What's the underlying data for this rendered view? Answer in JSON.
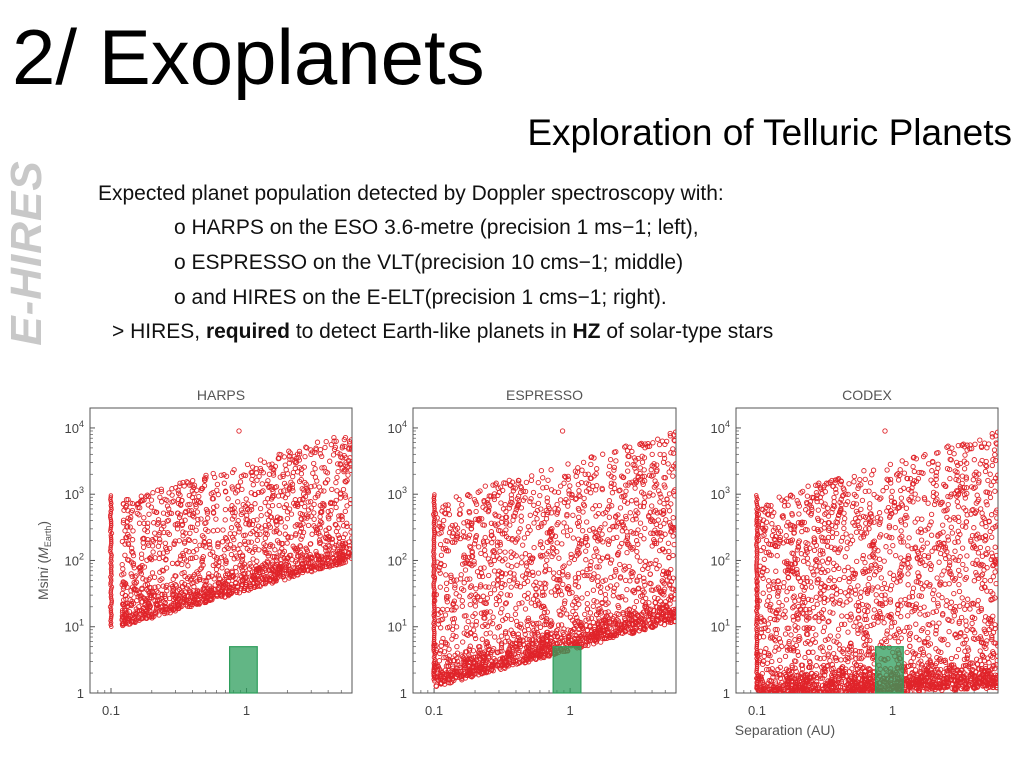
{
  "slide": {
    "title": "2/ Exoplanets",
    "subtitle": "Exploration of Telluric Planets",
    "side_label": "E-HIRES",
    "intro": "Expected planet population detected by Doppler spectroscopy with:",
    "bullets": [
      "o HARPS on the ESO 3.6-metre (precision 1 ms−1; left),",
      "o ESPRESSO on the VLT(precision 10 cms−1; middle)",
      "o and HIRES on the E-ELT(precision 1 cms−1; right)."
    ],
    "conclusion": {
      "prefix": "> HIRES, ",
      "strong1": "required",
      "middle": " to detect Earth-like planets in ",
      "strong2": "HZ",
      "suffix": " of solar-type stars"
    }
  },
  "colors": {
    "points": "#e0242a",
    "habitable_zone_fill": "#2e9e5c",
    "axis": "#555555"
  },
  "chart_data": [
    {
      "type": "scatter",
      "title": "HARPS",
      "xlabel": "",
      "ylabel": "Msini (MEarth)",
      "ylabel_main": "Msin",
      "ylabel_italic": "i",
      "ylabel_paren": " (",
      "ylabel_unit": "M",
      "ylabel_sub": "Earth",
      "ylabel_close": ")",
      "xscale": "log",
      "yscale": "log",
      "xlim": [
        0.07,
        6
      ],
      "ylim": [
        1,
        20000
      ],
      "xticks": [
        {
          "value": 0.1,
          "label": "0.1"
        },
        {
          "value": 1,
          "label": "1"
        }
      ],
      "yticks": [
        {
          "value": 1,
          "label": "1"
        },
        {
          "value": 10,
          "base": "10",
          "exp": "1"
        },
        {
          "value": 100,
          "base": "10",
          "exp": "2"
        },
        {
          "value": 1000,
          "base": "10",
          "exp": "3"
        },
        {
          "value": 10000,
          "base": "10",
          "exp": "4"
        }
      ],
      "detection_floor": {
        "x": [
          0.12,
          6
        ],
        "y": [
          10,
          100
        ]
      },
      "strip": {
        "x": 0.1,
        "y": [
          10,
          1000
        ]
      },
      "outlier": {
        "x": 0.88,
        "y": 9000
      },
      "habitable_zone": {
        "x": [
          0.75,
          1.2
        ],
        "y": [
          1,
          5
        ]
      },
      "n_points": 1700
    },
    {
      "type": "scatter",
      "title": "ESPRESSO",
      "xlabel": "",
      "ylabel": "",
      "xscale": "log",
      "yscale": "log",
      "xlim": [
        0.07,
        6
      ],
      "ylim": [
        1,
        20000
      ],
      "xticks": [
        {
          "value": 0.1,
          "label": "0.1"
        },
        {
          "value": 1,
          "label": "1"
        }
      ],
      "yticks": [
        {
          "value": 1,
          "label": "1"
        },
        {
          "value": 10,
          "base": "10",
          "exp": "1"
        },
        {
          "value": 100,
          "base": "10",
          "exp": "2"
        },
        {
          "value": 1000,
          "base": "10",
          "exp": "3"
        },
        {
          "value": 10000,
          "base": "10",
          "exp": "4"
        }
      ],
      "detection_floor": {
        "x": [
          0.1,
          6
        ],
        "y": [
          1.2,
          12
        ]
      },
      "strip": {
        "x": 0.1,
        "y": [
          1.5,
          1000
        ]
      },
      "outlier": {
        "x": 0.88,
        "y": 9000
      },
      "habitable_zone": {
        "x": [
          0.75,
          1.2
        ],
        "y": [
          1,
          5
        ]
      },
      "n_points": 2200
    },
    {
      "type": "scatter",
      "title": "CODEX",
      "xlabel": "Separation (AU)",
      "ylabel": "",
      "xscale": "log",
      "yscale": "log",
      "xlim": [
        0.07,
        6
      ],
      "ylim": [
        1,
        20000
      ],
      "xticks": [
        {
          "value": 0.1,
          "label": "0.1"
        },
        {
          "value": 1,
          "label": "1"
        }
      ],
      "yticks": [
        {
          "value": 1,
          "label": "1"
        },
        {
          "value": 10,
          "base": "10",
          "exp": "1"
        },
        {
          "value": 100,
          "base": "10",
          "exp": "2"
        },
        {
          "value": 1000,
          "base": "10",
          "exp": "3"
        },
        {
          "value": 10000,
          "base": "10",
          "exp": "4"
        }
      ],
      "detection_floor": {
        "x": [
          0.1,
          6
        ],
        "y": [
          0.8,
          1.2
        ]
      },
      "strip": {
        "x": 0.1,
        "y": [
          1.1,
          1000
        ]
      },
      "outlier": {
        "x": 0.88,
        "y": 9000
      },
      "habitable_zone": {
        "x": [
          0.75,
          1.2
        ],
        "y": [
          1,
          5
        ]
      },
      "n_points": 2700
    }
  ]
}
